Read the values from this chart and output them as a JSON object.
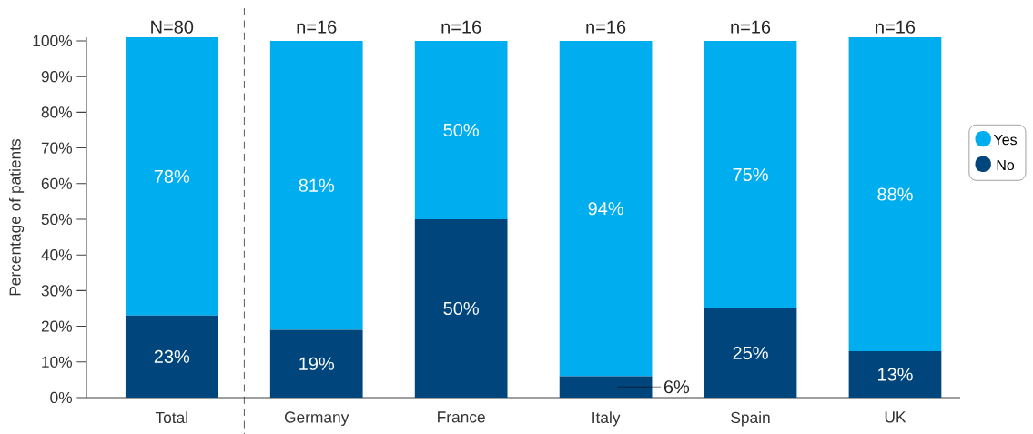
{
  "chart_data": {
    "type": "bar",
    "stacked": true,
    "ylabel": "Percentage of patients",
    "categories": [
      "Total",
      "Germany",
      "France",
      "Italy",
      "Spain",
      "UK"
    ],
    "series": [
      {
        "name": "No",
        "color": "#00457c",
        "values": [
          23,
          19,
          50,
          6,
          25,
          13
        ],
        "value_labels": [
          "23%",
          "19%",
          "50%",
          "6%",
          "25%",
          "13%"
        ]
      },
      {
        "name": "Yes",
        "color": "#00aeef",
        "values": [
          78,
          81,
          50,
          94,
          75,
          88
        ],
        "value_labels": [
          "78%",
          "81%",
          "50%",
          "94%",
          "75%",
          "88%"
        ]
      }
    ],
    "ylim": [
      0,
      101
    ],
    "yticks": [
      {
        "value": 0,
        "label": "0%"
      },
      {
        "value": 10,
        "label": "10%"
      },
      {
        "value": 20,
        "label": "20%"
      },
      {
        "value": 30,
        "label": "30%"
      },
      {
        "value": 40,
        "label": "40%"
      },
      {
        "value": 50,
        "label": "50%"
      },
      {
        "value": 60,
        "label": "60%"
      },
      {
        "value": 70,
        "label": "70%"
      },
      {
        "value": 80,
        "label": "80%"
      },
      {
        "value": 90,
        "label": "90%"
      },
      {
        "value": 100,
        "label": "100%"
      }
    ],
    "annotations": [
      "N=80",
      "n=16",
      "n=16",
      "n=16",
      "n=16",
      "n=16"
    ],
    "legend": "right",
    "grid": false
  }
}
